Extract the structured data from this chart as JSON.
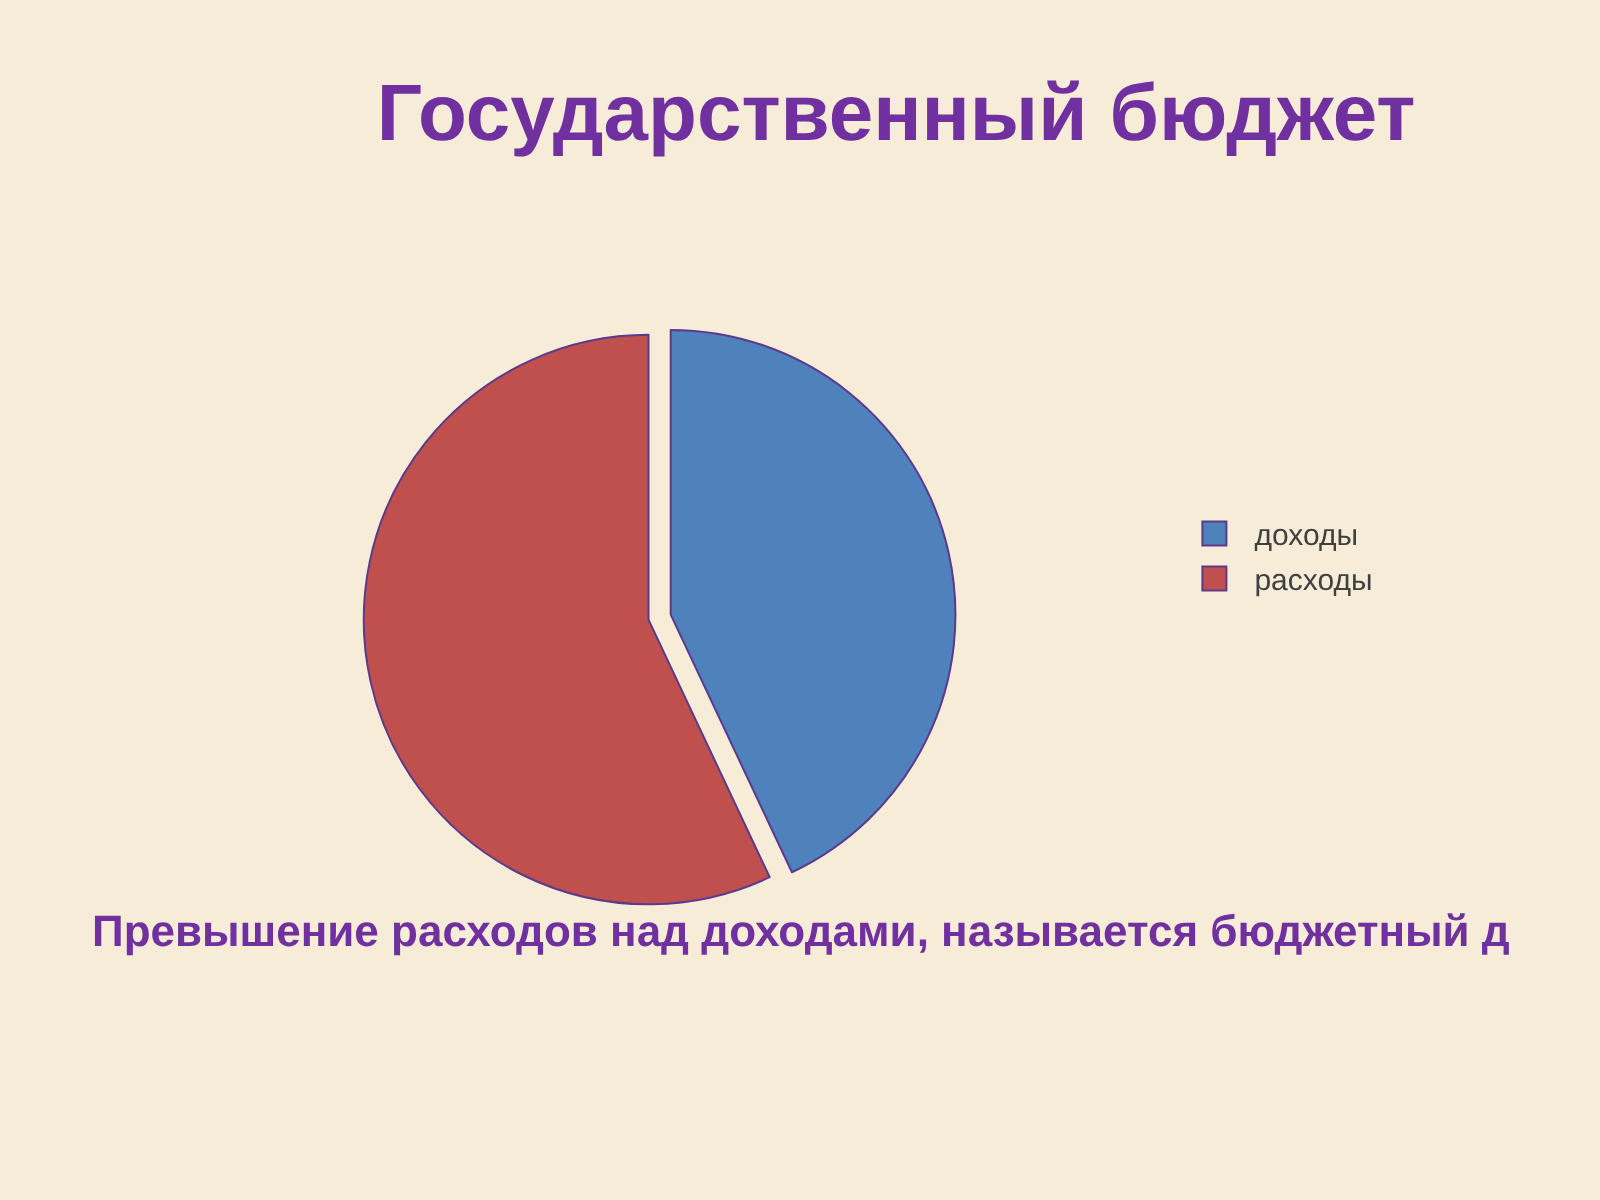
{
  "chart_data": {
    "type": "pie",
    "title": "Государственный бюджет",
    "categories": [
      "доходы",
      "расходы"
    ],
    "values": [
      43,
      57
    ],
    "colors": [
      "#4f81bd",
      "#c0504d"
    ],
    "legend": "right",
    "annotations": [
      "Превышение расходов над доходами, называется бюджетный д"
    ]
  }
}
